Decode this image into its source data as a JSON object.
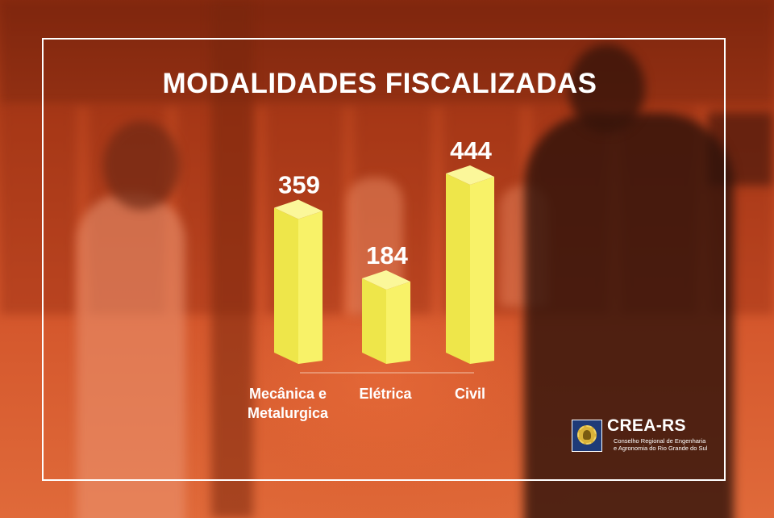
{
  "chart_data": {
    "type": "bar",
    "title": "MODALIDADES FISCALIZADAS",
    "categories": [
      [
        "Mecânica e",
        "Metalurgica"
      ],
      [
        "Elétrica"
      ],
      [
        "Civil"
      ]
    ],
    "values": [
      359,
      184,
      444
    ],
    "value_labels": [
      "359",
      "184",
      "444"
    ],
    "bar_color": "#f2ec52",
    "style": "3d-columns",
    "grid": false,
    "legend": "none"
  },
  "logo": {
    "name": "CREA-RS",
    "subtitle_line1": "Conselho Regional de Engenharia",
    "subtitle_line2": "e Agronomia do Rio Grande do Sul",
    "colors": {
      "seal_blue": "#1f3b78",
      "seal_gold": "#d9b23a"
    }
  }
}
